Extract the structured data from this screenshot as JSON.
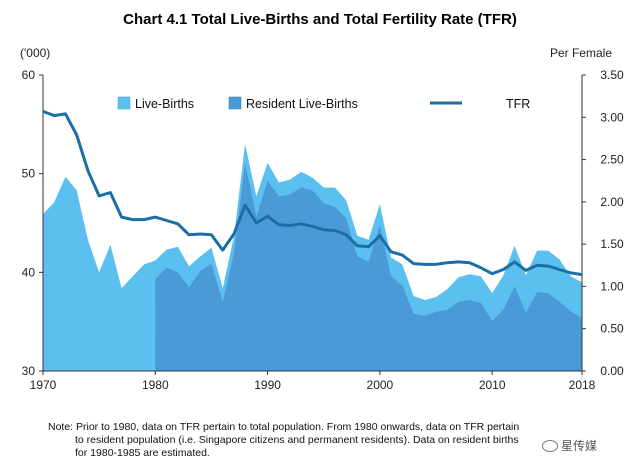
{
  "chart_data": {
    "type": "area",
    "title": "Chart 4.1  Total Live-Births and Total Fertility Rate (TFR)",
    "left_axis": {
      "unit": "('000)",
      "range": [
        30,
        60
      ],
      "ticks": [
        "30",
        "40",
        "50",
        "60"
      ]
    },
    "right_axis": {
      "unit": "Per Female",
      "range": [
        0,
        3.5
      ],
      "ticks": [
        "0.00",
        "0.50",
        "1.00",
        "1.50",
        "2.00",
        "2.50",
        "3.00",
        "3.50"
      ]
    },
    "x_ticks": [
      "1970",
      "1980",
      "1990",
      "2000",
      "2010",
      "2018"
    ],
    "x": [
      1970,
      1971,
      1972,
      1973,
      1974,
      1975,
      1976,
      1977,
      1978,
      1979,
      1980,
      1981,
      1982,
      1983,
      1984,
      1985,
      1986,
      1987,
      1988,
      1989,
      1990,
      1991,
      1992,
      1993,
      1994,
      1995,
      1996,
      1997,
      1998,
      1999,
      2000,
      2001,
      2002,
      2003,
      2004,
      2005,
      2006,
      2007,
      2008,
      2009,
      2010,
      2011,
      2012,
      2013,
      2014,
      2015,
      2016,
      2017,
      2018
    ],
    "series": [
      {
        "name": "Live-Births",
        "axis": "left",
        "color": "#5bc0f0",
        "values": [
          45.9,
          47.1,
          49.7,
          48.3,
          43.3,
          40.0,
          42.8,
          38.4,
          39.6,
          40.8,
          41.2,
          42.3,
          42.6,
          40.6,
          41.6,
          42.5,
          38.4,
          43.6,
          53.0,
          47.7,
          51.1,
          49.1,
          49.4,
          50.2,
          49.6,
          48.6,
          48.6,
          47.3,
          43.7,
          43.3,
          46.9,
          41.5,
          40.8,
          37.6,
          37.2,
          37.5,
          38.3,
          39.5,
          39.8,
          39.6,
          37.9,
          39.7,
          42.7,
          39.7,
          42.2,
          42.2,
          41.3,
          39.6,
          39.0
        ]
      },
      {
        "name": "Resident Live-Births",
        "axis": "left",
        "color": "#4b9ad8",
        "start": 1980,
        "values": [
          null,
          null,
          null,
          null,
          null,
          null,
          null,
          null,
          null,
          null,
          39.3,
          40.5,
          40.0,
          38.5,
          40.1,
          40.9,
          37.0,
          41.9,
          51.1,
          45.6,
          49.3,
          47.7,
          47.9,
          48.6,
          48.3,
          47.0,
          46.6,
          45.5,
          41.6,
          41.1,
          44.8,
          39.6,
          38.7,
          35.8,
          35.6,
          36.0,
          36.2,
          37.0,
          37.2,
          36.9,
          35.1,
          36.2,
          38.6,
          35.9,
          38.0,
          37.9,
          37.0,
          36.0,
          35.4
        ]
      },
      {
        "name": "TFR",
        "axis": "right",
        "color": "#1a6fa5",
        "values": [
          3.07,
          3.02,
          3.04,
          2.79,
          2.37,
          2.07,
          2.11,
          1.82,
          1.79,
          1.79,
          1.82,
          1.78,
          1.74,
          1.61,
          1.62,
          1.61,
          1.43,
          1.62,
          1.96,
          1.75,
          1.83,
          1.73,
          1.72,
          1.74,
          1.71,
          1.67,
          1.66,
          1.61,
          1.48,
          1.47,
          1.6,
          1.41,
          1.37,
          1.27,
          1.26,
          1.26,
          1.28,
          1.29,
          1.28,
          1.22,
          1.15,
          1.2,
          1.29,
          1.19,
          1.25,
          1.24,
          1.2,
          1.16,
          1.14
        ]
      }
    ],
    "legend": [
      "Live-Births",
      "Resident Live-Births",
      "TFR"
    ],
    "legend_placement": "top"
  },
  "note": {
    "line1": "Note: Prior to 1980, data on TFR pertain to total population. From 1980 onwards, data on TFR pertain",
    "line2": "to resident population (i.e. Singapore citizens and permanent residents). Data on resident births",
    "line3": "for 1980-1985 are estimated."
  },
  "watermark": "星传媒"
}
